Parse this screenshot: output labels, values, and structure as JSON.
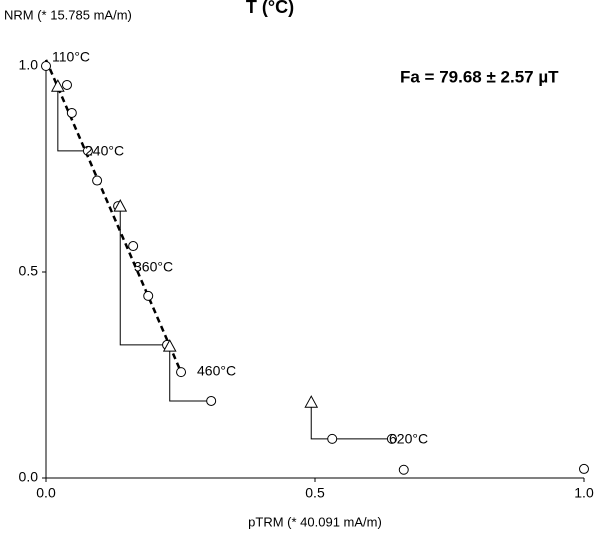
{
  "chart_data": {
    "type": "arai",
    "title": "T (°C)",
    "y_label": "NRM (* 15.785 mA/m)",
    "x_label": "pTRM (* 40.091 mA/m)",
    "result": "Fa = 79.68 ± 2.57 µT",
    "xlim": [
      0,
      1.0
    ],
    "ylim": [
      0,
      1.0
    ],
    "xticks": [
      {
        "value": 0,
        "label": "0.0"
      },
      {
        "value": 0.5,
        "label": "0.5"
      },
      {
        "value": 1.0,
        "label": "1.0"
      }
    ],
    "yticks": [
      {
        "value": 0,
        "label": "0.0"
      },
      {
        "value": 0.5,
        "label": "0.5"
      },
      {
        "value": 1.0,
        "label": "1.0"
      }
    ],
    "points": {
      "x": [
        0,
        0.039,
        0.048,
        0.078,
        0.095,
        0.134,
        0.162,
        0.19,
        0.225,
        0.251,
        0.307,
        0.532,
        0.643,
        0.665,
        1.0
      ],
      "y": [
        1.0,
        0.954,
        0.886,
        0.794,
        0.722,
        0.66,
        0.563,
        0.442,
        0.323,
        0.257,
        0.187,
        0.095,
        0.095,
        0.02,
        0.022
      ]
    },
    "checks": {
      "x": [
        0.022,
        0.138,
        0.23,
        0.493
      ],
      "y": [
        0.951,
        0.66,
        0.32,
        0.184
      ]
    },
    "fit": {
      "x": [
        0,
        0.251
      ],
      "y": [
        1.015,
        0.257
      ]
    },
    "annotations": [
      "110°C",
      "240°C",
      "360°C",
      "460°C",
      "620°C"
    ]
  }
}
